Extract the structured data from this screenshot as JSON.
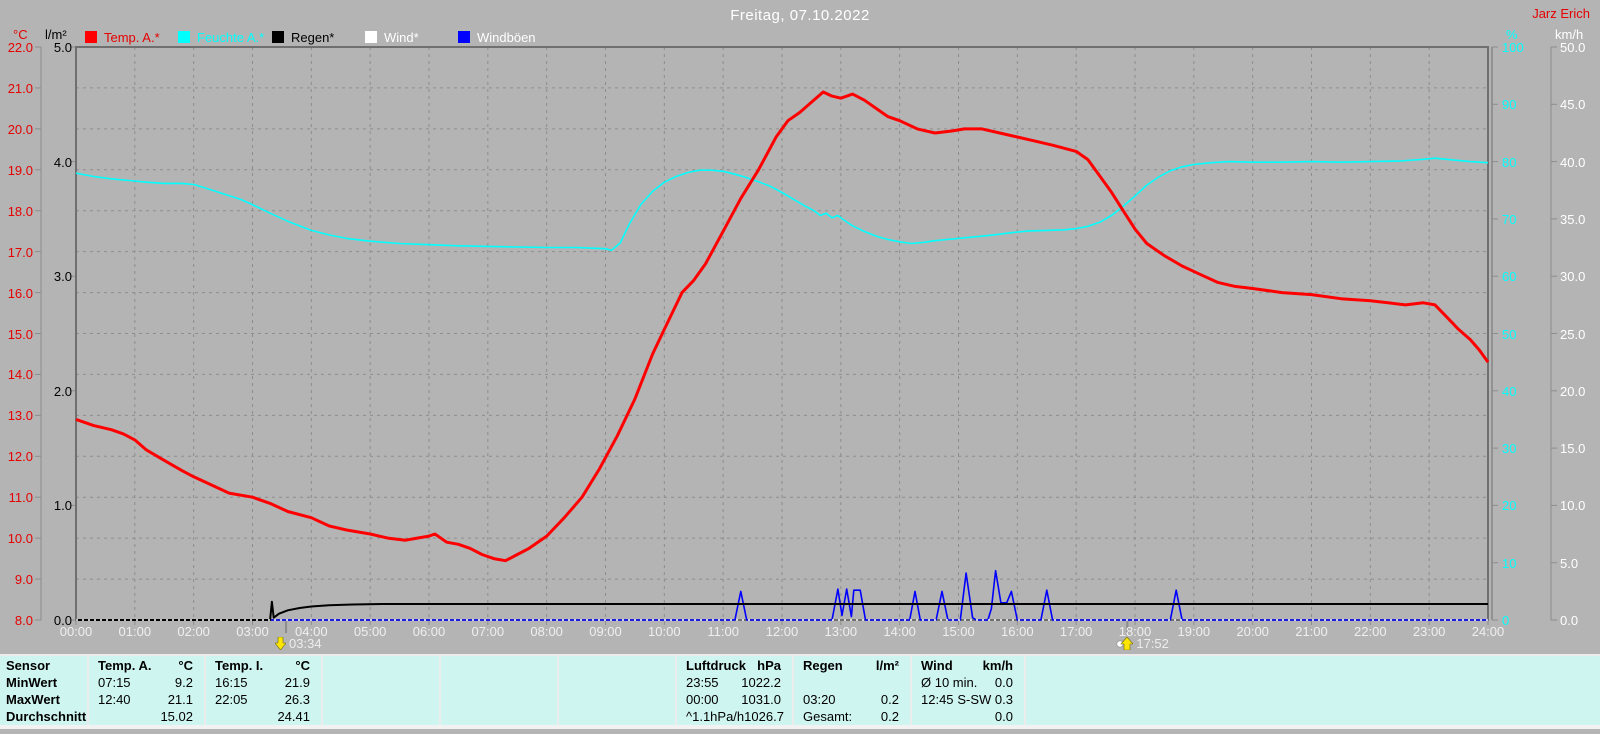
{
  "header": {
    "title": "Freitag, 07.10.2022",
    "author": "Jarz Erich"
  },
  "legend": [
    {
      "label": "Temp. A.*",
      "swatch": "#ff0000",
      "text_color": "#e60000"
    },
    {
      "label": "Feuchte A.*",
      "swatch": "#00ffff",
      "text_color": "#00ffff"
    },
    {
      "label": "Regen*",
      "swatch": "#000000",
      "text_color": "#000000"
    },
    {
      "label": "Wind*",
      "swatch": "#ffffff",
      "text_color": "#ffffff"
    },
    {
      "label": "Windböen",
      "swatch": "#0000ff",
      "text_color": "#ffffff"
    }
  ],
  "chart_data": {
    "type": "line",
    "title": "Freitag, 07.10.2022",
    "x_axis": {
      "unit": "hours",
      "min": 0,
      "max": 24,
      "step": 1,
      "tick_format": "HH:00"
    },
    "grid": true,
    "axes": {
      "temp": {
        "title": "°C",
        "color": "#e60000",
        "min": 8,
        "max": 22,
        "step": 1,
        "decimals": 1,
        "side": "left"
      },
      "rain": {
        "title": "l/m²",
        "color": "#000000",
        "min": 0,
        "max": 5,
        "step": 1,
        "decimals": 1,
        "side": "left"
      },
      "humidity": {
        "title": "%",
        "color": "#00ffff",
        "min": 0,
        "max": 100,
        "step": 10,
        "decimals": 0,
        "side": "right"
      },
      "wind": {
        "title": "km/h",
        "color": "#ffffff",
        "min": 0,
        "max": 50,
        "step": 5,
        "decimals": 1,
        "side": "right"
      }
    },
    "series": [
      {
        "name": "Temp. A.",
        "axis": "temp",
        "color": "#ff0000",
        "width": 3,
        "z": 5,
        "points": [
          [
            0,
            12.9
          ],
          [
            0.3,
            12.75
          ],
          [
            0.6,
            12.65
          ],
          [
            0.8,
            12.55
          ],
          [
            1,
            12.4
          ],
          [
            1.2,
            12.15
          ],
          [
            1.5,
            11.9
          ],
          [
            1.8,
            11.65
          ],
          [
            2,
            11.5
          ],
          [
            2.3,
            11.3
          ],
          [
            2.6,
            11.1
          ],
          [
            3,
            11.0
          ],
          [
            3.3,
            10.85
          ],
          [
            3.6,
            10.65
          ],
          [
            4,
            10.5
          ],
          [
            4.3,
            10.3
          ],
          [
            4.6,
            10.2
          ],
          [
            5,
            10.1
          ],
          [
            5.3,
            10.0
          ],
          [
            5.6,
            9.95
          ],
          [
            5.8,
            10.0
          ],
          [
            6,
            10.05
          ],
          [
            6.1,
            10.1
          ],
          [
            6.3,
            9.9
          ],
          [
            6.5,
            9.85
          ],
          [
            6.7,
            9.75
          ],
          [
            6.9,
            9.6
          ],
          [
            7.1,
            9.5
          ],
          [
            7.3,
            9.45
          ],
          [
            7.5,
            9.6
          ],
          [
            7.7,
            9.75
          ],
          [
            8,
            10.05
          ],
          [
            8.3,
            10.5
          ],
          [
            8.6,
            11.0
          ],
          [
            8.9,
            11.7
          ],
          [
            9.2,
            12.5
          ],
          [
            9.5,
            13.4
          ],
          [
            9.8,
            14.5
          ],
          [
            10,
            15.1
          ],
          [
            10.3,
            16.0
          ],
          [
            10.5,
            16.3
          ],
          [
            10.7,
            16.7
          ],
          [
            11,
            17.5
          ],
          [
            11.3,
            18.3
          ],
          [
            11.6,
            19.0
          ],
          [
            11.9,
            19.8
          ],
          [
            12.1,
            20.2
          ],
          [
            12.3,
            20.4
          ],
          [
            12.5,
            20.65
          ],
          [
            12.7,
            20.9
          ],
          [
            12.85,
            20.8
          ],
          [
            13,
            20.75
          ],
          [
            13.2,
            20.85
          ],
          [
            13.4,
            20.7
          ],
          [
            13.6,
            20.5
          ],
          [
            13.8,
            20.3
          ],
          [
            14,
            20.2
          ],
          [
            14.3,
            20.0
          ],
          [
            14.6,
            19.9
          ],
          [
            14.9,
            19.95
          ],
          [
            15.1,
            20.0
          ],
          [
            15.4,
            20.0
          ],
          [
            15.7,
            19.9
          ],
          [
            16,
            19.8
          ],
          [
            16.3,
            19.7
          ],
          [
            16.6,
            19.6
          ],
          [
            17,
            19.45
          ],
          [
            17.2,
            19.25
          ],
          [
            17.4,
            18.85
          ],
          [
            17.6,
            18.45
          ],
          [
            17.8,
            18.0
          ],
          [
            18,
            17.55
          ],
          [
            18.2,
            17.2
          ],
          [
            18.5,
            16.9
          ],
          [
            18.8,
            16.65
          ],
          [
            19.1,
            16.45
          ],
          [
            19.4,
            16.25
          ],
          [
            19.7,
            16.15
          ],
          [
            20,
            16.1
          ],
          [
            20.5,
            16.0
          ],
          [
            21,
            15.95
          ],
          [
            21.5,
            15.85
          ],
          [
            22,
            15.8
          ],
          [
            22.3,
            15.75
          ],
          [
            22.6,
            15.7
          ],
          [
            22.9,
            15.75
          ],
          [
            23.1,
            15.7
          ],
          [
            23.3,
            15.4
          ],
          [
            23.5,
            15.1
          ],
          [
            23.7,
            14.85
          ],
          [
            23.85,
            14.6
          ],
          [
            24,
            14.3
          ]
        ]
      },
      {
        "name": "Feuchte A.",
        "axis": "humidity",
        "color": "#00ffff",
        "width": 1.6,
        "z": 2,
        "points": [
          [
            0,
            78
          ],
          [
            0.3,
            77.4
          ],
          [
            0.6,
            77
          ],
          [
            0.9,
            76.7
          ],
          [
            1.2,
            76.4
          ],
          [
            1.5,
            76.2
          ],
          [
            1.8,
            76.2
          ],
          [
            2,
            76
          ],
          [
            2.2,
            75.4
          ],
          [
            2.5,
            74.4
          ],
          [
            2.8,
            73.4
          ],
          [
            3,
            72.5
          ],
          [
            3.3,
            71
          ],
          [
            3.6,
            69.6
          ],
          [
            4,
            68
          ],
          [
            4.3,
            67.2
          ],
          [
            4.6,
            66.6
          ],
          [
            5,
            66.1
          ],
          [
            5.5,
            65.7
          ],
          [
            6,
            65.5
          ],
          [
            6.5,
            65.3
          ],
          [
            7,
            65.2
          ],
          [
            7.5,
            65.1
          ],
          [
            8,
            65
          ],
          [
            8.5,
            65
          ],
          [
            9,
            64.8
          ],
          [
            9.1,
            64.5
          ],
          [
            9.25,
            65.8
          ],
          [
            9.4,
            69
          ],
          [
            9.6,
            72.5
          ],
          [
            9.8,
            74.8
          ],
          [
            10,
            76.4
          ],
          [
            10.2,
            77.4
          ],
          [
            10.4,
            78.1
          ],
          [
            10.6,
            78.5
          ],
          [
            10.8,
            78.5
          ],
          [
            11,
            78.3
          ],
          [
            11.2,
            77.8
          ],
          [
            11.4,
            77.2
          ],
          [
            11.6,
            76.5
          ],
          [
            11.8,
            75.7
          ],
          [
            12,
            74.6
          ],
          [
            12.2,
            73.4
          ],
          [
            12.4,
            72.2
          ],
          [
            12.55,
            71.4
          ],
          [
            12.65,
            70.6
          ],
          [
            12.75,
            71
          ],
          [
            12.85,
            70.2
          ],
          [
            12.95,
            70.6
          ],
          [
            13.05,
            69.8
          ],
          [
            13.2,
            68.8
          ],
          [
            13.4,
            67.8
          ],
          [
            13.6,
            67
          ],
          [
            13.8,
            66.4
          ],
          [
            14,
            66
          ],
          [
            14.2,
            65.7
          ],
          [
            14.4,
            65.9
          ],
          [
            14.6,
            66.2
          ],
          [
            14.8,
            66.4
          ],
          [
            15,
            66.6
          ],
          [
            15.3,
            66.9
          ],
          [
            15.6,
            67.2
          ],
          [
            15.9,
            67.6
          ],
          [
            16.2,
            67.9
          ],
          [
            16.5,
            68
          ],
          [
            16.8,
            68.1
          ],
          [
            17,
            68.3
          ],
          [
            17.2,
            68.7
          ],
          [
            17.4,
            69.4
          ],
          [
            17.6,
            70.6
          ],
          [
            17.8,
            72.2
          ],
          [
            18,
            74
          ],
          [
            18.2,
            75.9
          ],
          [
            18.4,
            77.3
          ],
          [
            18.6,
            78.4
          ],
          [
            18.8,
            79.1
          ],
          [
            19,
            79.5
          ],
          [
            19.3,
            79.8
          ],
          [
            19.6,
            80
          ],
          [
            20,
            79.9
          ],
          [
            20.5,
            79.9
          ],
          [
            21,
            80
          ],
          [
            21.5,
            79.9
          ],
          [
            22,
            80
          ],
          [
            22.5,
            80.1
          ],
          [
            22.9,
            80.4
          ],
          [
            23.1,
            80.6
          ],
          [
            23.4,
            80.3
          ],
          [
            23.7,
            80
          ],
          [
            24,
            79.8
          ]
        ]
      },
      {
        "name": "Regen",
        "axis": "rain",
        "color": "#000000",
        "width": 2,
        "z": 3,
        "points": [
          [
            0,
            0
          ],
          [
            3.3,
            0
          ],
          [
            3.33,
            0.16
          ],
          [
            3.36,
            0.02
          ],
          [
            3.45,
            0.055
          ],
          [
            3.6,
            0.085
          ],
          [
            3.8,
            0.105
          ],
          [
            4,
            0.118
          ],
          [
            4.3,
            0.128
          ],
          [
            4.7,
            0.135
          ],
          [
            5.2,
            0.14
          ],
          [
            24,
            0.14
          ]
        ]
      },
      {
        "name": "Wind",
        "axis": "wind",
        "color": "#ffffff",
        "width": 1.4,
        "dash": "2 4",
        "z": 4,
        "points": [
          [
            0,
            0
          ],
          [
            24,
            0
          ]
        ]
      },
      {
        "name": "Windböen",
        "axis": "wind",
        "color": "#0000ff",
        "width": 1.6,
        "z": 1,
        "points": [
          [
            0,
            0
          ],
          [
            11.2,
            0
          ],
          [
            11.3,
            2.5
          ],
          [
            11.4,
            0
          ],
          [
            12.85,
            0
          ],
          [
            12.95,
            2.7
          ],
          [
            13.02,
            0.4
          ],
          [
            13.1,
            2.7
          ],
          [
            13.18,
            0.3
          ],
          [
            13.22,
            2.6
          ],
          [
            13.33,
            2.6
          ],
          [
            13.42,
            0
          ],
          [
            14.17,
            0
          ],
          [
            14.26,
            2.5
          ],
          [
            14.35,
            0
          ],
          [
            14.62,
            0
          ],
          [
            14.72,
            2.5
          ],
          [
            14.82,
            0
          ],
          [
            15.03,
            0
          ],
          [
            15.13,
            4.1
          ],
          [
            15.24,
            0.2
          ],
          [
            15.3,
            0
          ],
          [
            15.5,
            0
          ],
          [
            15.56,
            1.0
          ],
          [
            15.63,
            4.3
          ],
          [
            15.72,
            1.5
          ],
          [
            15.82,
            1.5
          ],
          [
            15.9,
            2.5
          ],
          [
            16,
            0
          ],
          [
            16.4,
            0
          ],
          [
            16.5,
            2.6
          ],
          [
            16.6,
            0
          ],
          [
            18.6,
            0
          ],
          [
            18.7,
            2.6
          ],
          [
            18.8,
            0
          ],
          [
            24,
            0
          ]
        ]
      }
    ],
    "markers": [
      {
        "label": "03:34",
        "hour": 3.57,
        "direction": "down"
      },
      {
        "label": "17:52",
        "hour": 17.87,
        "direction": "up"
      }
    ]
  },
  "table": {
    "row_labels": [
      "Sensor",
      "MinWert",
      "MaxWert",
      "Durchschnitt"
    ],
    "columns": [
      {
        "title": "Temp. A.",
        "unit": "°C",
        "rows": [
          [
            "07:15",
            "9.2"
          ],
          [
            "12:40",
            "21.1"
          ],
          [
            "",
            "15.02"
          ]
        ]
      },
      {
        "title": "Temp. I.",
        "unit": "°C",
        "rows": [
          [
            "16:15",
            "21.9"
          ],
          [
            "22:05",
            "26.3"
          ],
          [
            "",
            "24.41"
          ]
        ]
      },
      {
        "title": "",
        "unit": "",
        "rows": [
          [
            "",
            ""
          ],
          [
            "",
            ""
          ],
          [
            "",
            ""
          ]
        ]
      },
      {
        "title": "",
        "unit": "",
        "rows": [
          [
            "",
            ""
          ],
          [
            "",
            ""
          ],
          [
            "",
            ""
          ]
        ]
      },
      {
        "title": "",
        "unit": "",
        "rows": [
          [
            "",
            ""
          ],
          [
            "",
            ""
          ],
          [
            "",
            ""
          ]
        ]
      },
      {
        "title": "Luftdruck",
        "unit": "hPa",
        "rows": [
          [
            "23:55",
            "1022.2"
          ],
          [
            "00:00",
            "1031.0"
          ],
          [
            "^1.1hPa/h",
            "1026.7"
          ]
        ]
      },
      {
        "title": "Regen",
        "unit": "l/m²",
        "rows": [
          [
            "",
            ""
          ],
          [
            "03:20",
            "0.2"
          ],
          [
            "Gesamt:",
            "0.2"
          ]
        ]
      },
      {
        "title": "Wind",
        "unit": "km/h",
        "rows": [
          [
            "Ø 10 min.",
            "0.0"
          ],
          [
            "12:45",
            "S-SW 0.3"
          ],
          [
            "",
            "0.0"
          ]
        ]
      },
      {
        "title": "",
        "unit": "",
        "rows": [
          [
            "",
            ""
          ],
          [
            "",
            ""
          ],
          [
            "",
            ""
          ]
        ]
      }
    ]
  }
}
